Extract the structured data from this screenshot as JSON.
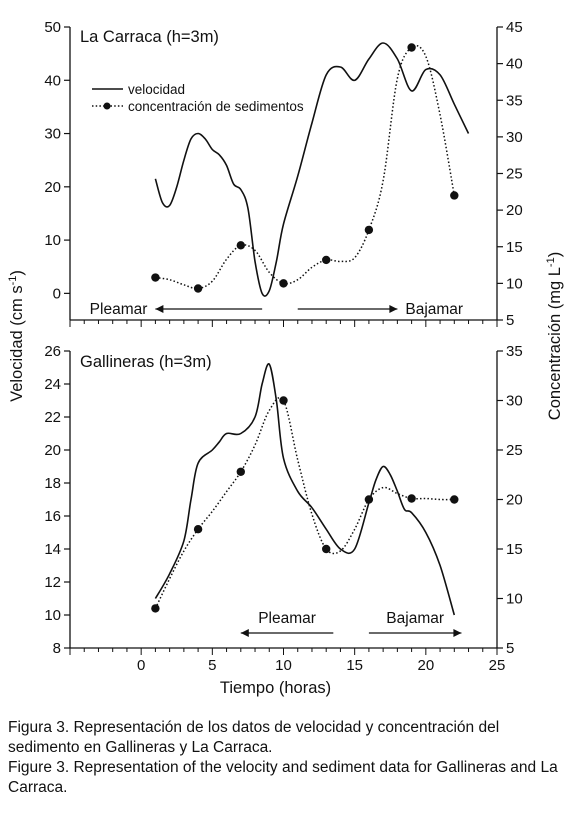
{
  "chart_data": [
    {
      "type": "line",
      "title": "La Carraca (h=3m)",
      "xlim": [
        -5,
        25
      ],
      "xticks": [],
      "ylim_left": [
        -5,
        50
      ],
      "yticks_left": [
        0,
        10,
        20,
        30,
        40,
        50
      ],
      "ylim_right": [
        5,
        45
      ],
      "yticks_right": [
        5,
        10,
        15,
        20,
        25,
        30,
        35,
        40,
        45
      ],
      "legend": {
        "placement": "top-left",
        "entries": [
          "velocidad",
          "concentración de sedimentos"
        ]
      },
      "series": [
        {
          "name": "velocidad",
          "axis": "left",
          "style": "solid",
          "x": [
            1,
            1.5,
            2,
            2.5,
            3,
            3.5,
            4,
            4.5,
            5,
            5.5,
            6,
            6.5,
            7,
            7.5,
            8,
            8.5,
            9,
            9.5,
            10,
            11,
            12,
            13,
            14,
            15,
            16,
            17,
            18,
            19,
            20,
            21,
            22,
            23
          ],
          "y": [
            21.5,
            17,
            16.5,
            20,
            25,
            29,
            30,
            29,
            27,
            26,
            24,
            20.5,
            19.5,
            16,
            6,
            0,
            0.5,
            6,
            13,
            22,
            32,
            41,
            42.5,
            40,
            44,
            47,
            44,
            38,
            42,
            41,
            35.5,
            30
          ]
        },
        {
          "name": "concentración de sedimentos",
          "axis": "right",
          "style": "dotted",
          "markers": [
            [
              1,
              10.8
            ],
            [
              4,
              9.3
            ],
            [
              7,
              15.2
            ],
            [
              10,
              10
            ],
            [
              13,
              13.2
            ],
            [
              16,
              17.3
            ],
            [
              19,
              42.2
            ],
            [
              22,
              22
            ]
          ],
          "curve": [
            [
              1,
              10.8
            ],
            [
              2,
              10.5
            ],
            [
              3,
              9.8
            ],
            [
              4,
              9.3
            ],
            [
              5,
              10.3
            ],
            [
              6,
              13.3
            ],
            [
              7,
              15.2
            ],
            [
              8,
              14.5
            ],
            [
              9,
              11.5
            ],
            [
              10,
              10
            ],
            [
              11,
              10.5
            ],
            [
              12,
              12.2
            ],
            [
              13,
              13.2
            ],
            [
              14,
              13
            ],
            [
              15,
              13.5
            ],
            [
              16,
              17.3
            ],
            [
              17,
              24
            ],
            [
              18,
              38
            ],
            [
              19,
              42.2
            ],
            [
              20,
              41
            ],
            [
              21,
              33
            ],
            [
              22,
              22
            ]
          ]
        }
      ],
      "annotations": [
        {
          "text": "Pleamar",
          "arrow": "left",
          "x_from": 8.5,
          "x_to": 1
        },
        {
          "text": "Bajamar",
          "arrow": "right",
          "x_from": 11,
          "x_to": 18
        }
      ]
    },
    {
      "type": "line",
      "title": "Gallineras (h=3m)",
      "xlabel": "Tiempo (horas)",
      "xlim": [
        -5,
        25
      ],
      "xticks": [
        0,
        5,
        10,
        15,
        20,
        25
      ],
      "ylim_left": [
        8,
        26
      ],
      "yticks_left": [
        8,
        10,
        12,
        14,
        16,
        18,
        20,
        22,
        24,
        26
      ],
      "ylim_right": [
        5,
        35
      ],
      "yticks_right": [
        5,
        10,
        15,
        20,
        25,
        30,
        35
      ],
      "series": [
        {
          "name": "velocidad",
          "axis": "left",
          "style": "solid",
          "x": [
            1,
            2,
            3,
            3.5,
            4,
            5,
            5.5,
            6,
            7,
            8,
            8.5,
            9,
            9.5,
            10,
            11,
            12,
            13,
            14,
            15,
            16,
            16.5,
            17,
            17.5,
            18,
            18.5,
            19,
            20,
            21,
            22
          ],
          "y": [
            11,
            12.5,
            14.5,
            17,
            19.2,
            20,
            20.5,
            21,
            21,
            22,
            24,
            25.2,
            23,
            19.5,
            17.5,
            16.5,
            15.2,
            14,
            14,
            16.8,
            18.2,
            19,
            18.5,
            17.5,
            16.4,
            16.2,
            15,
            13,
            10
          ]
        },
        {
          "name": "concentración de sedimentos",
          "axis": "right",
          "style": "dotted",
          "markers": [
            [
              1,
              9
            ],
            [
              4,
              17
            ],
            [
              7,
              22.8
            ],
            [
              10,
              30
            ],
            [
              13,
              15
            ],
            [
              16,
              20
            ],
            [
              19,
              20.1
            ],
            [
              22,
              20
            ]
          ],
          "curve": [
            [
              1,
              9
            ],
            [
              2,
              12
            ],
            [
              3,
              14.8
            ],
            [
              4,
              17
            ],
            [
              5,
              18.8
            ],
            [
              6,
              20.8
            ],
            [
              7,
              22.8
            ],
            [
              8,
              25.5
            ],
            [
              9,
              29
            ],
            [
              10,
              30
            ],
            [
              11,
              24
            ],
            [
              12,
              18.5
            ],
            [
              13,
              15
            ],
            [
              14,
              14.8
            ],
            [
              15,
              17
            ],
            [
              16,
              20
            ],
            [
              17,
              21.2
            ],
            [
              18,
              20.6
            ],
            [
              19,
              20.1
            ],
            [
              20,
              20.1
            ],
            [
              21,
              20
            ],
            [
              22,
              20
            ]
          ]
        }
      ],
      "annotations": [
        {
          "text": "Pleamar",
          "arrow": "left",
          "x_from": 13.5,
          "x_to": 7
        },
        {
          "text": "Bajamar",
          "arrow": "right",
          "x_from": 16,
          "x_to": 22.5
        }
      ]
    }
  ],
  "shared_axes": {
    "ylabel_left": "Velocidad (cm s",
    "ylabel_left_sup": "-1",
    "ylabel_left_end": ")",
    "ylabel_right": "Concentración (mg L",
    "ylabel_right_sup": "-1",
    "ylabel_right_end": ")"
  },
  "caption": {
    "es_label": "Figura 3.",
    "es_text": " Representación de los datos de velocidad y concentración del sedimento en Gallineras y La Carraca.",
    "en_label": "Figure 3.",
    "en_text": " Representation of the velocity and sediment data for Gallineras and La Carraca."
  }
}
